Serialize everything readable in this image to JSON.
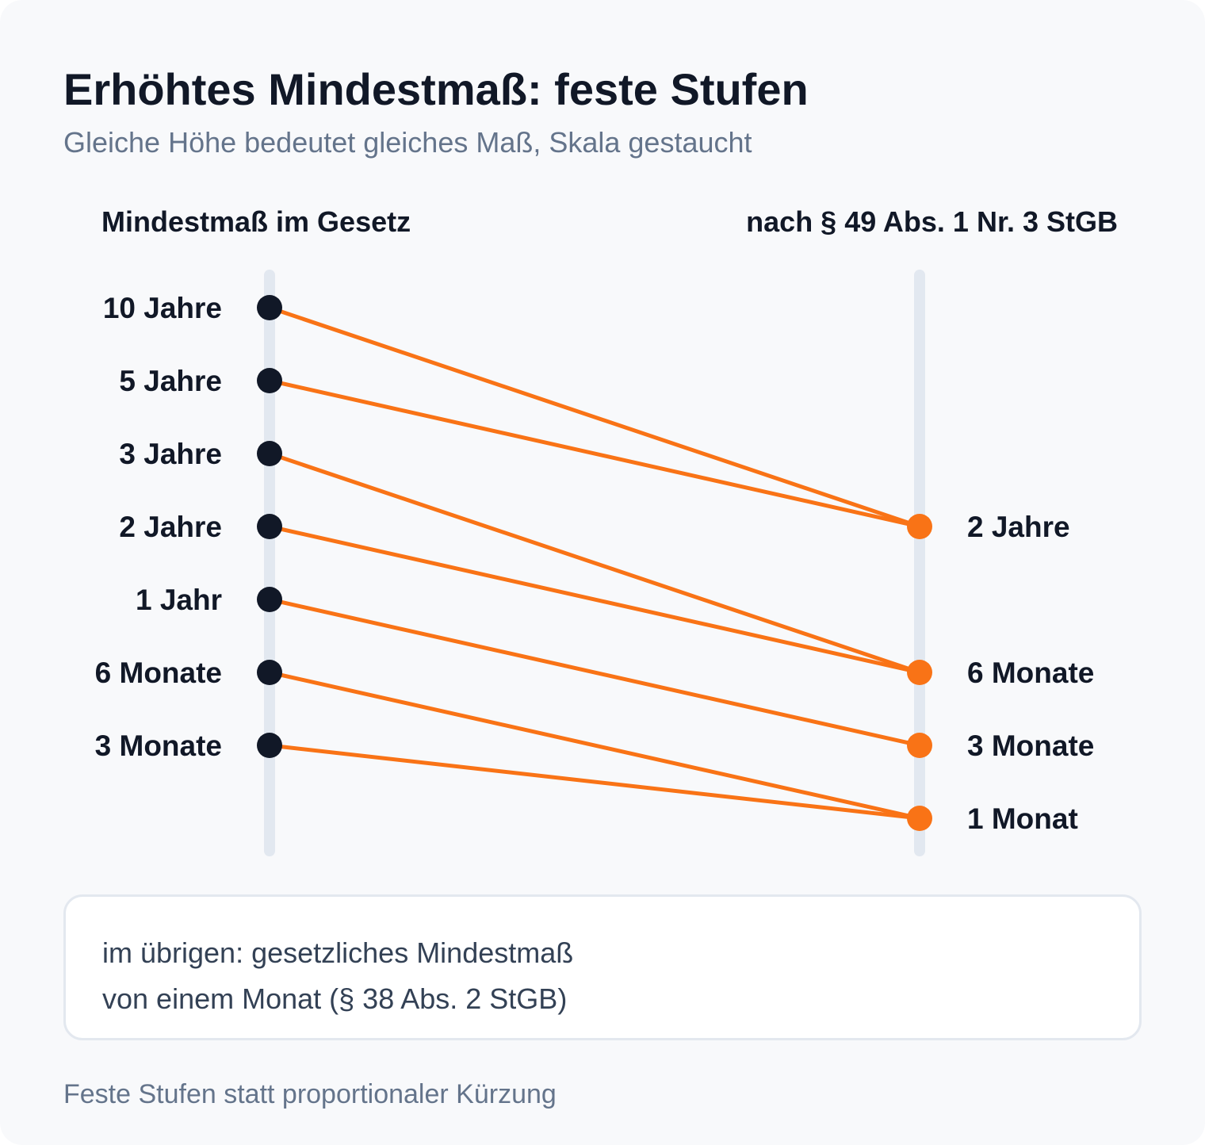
{
  "title": "Erhöhtes Mindestmaß: feste Stufen",
  "subtitle": "Gleiche Höhe bedeutet gleiches Maß, Skala gestaucht",
  "columns": {
    "left_heading": "Mindestmaß im Gesetz",
    "right_heading": "nach § 49 Abs. 1 Nr. 3 StGB"
  },
  "scale_levels": [
    "10 Jahre",
    "5 Jahre",
    "3 Jahre",
    "2 Jahre",
    "1 Jahr",
    "6 Monate",
    "3 Monate",
    "1 Monat"
  ],
  "left_items": [
    "10 Jahre",
    "5 Jahre",
    "3 Jahre",
    "2 Jahre",
    "1 Jahr",
    "6 Monate",
    "3 Monate"
  ],
  "right_items": [
    "2 Jahre",
    "6 Monate",
    "3 Monate",
    "1 Monat"
  ],
  "mappings": [
    {
      "from": "10 Jahre",
      "to": "2 Jahre"
    },
    {
      "from": "5 Jahre",
      "to": "2 Jahre"
    },
    {
      "from": "3 Jahre",
      "to": "6 Monate"
    },
    {
      "from": "2 Jahre",
      "to": "6 Monate"
    },
    {
      "from": "1 Jahr",
      "to": "3 Monate"
    },
    {
      "from": "6 Monate",
      "to": "1 Monat"
    },
    {
      "from": "3 Monate",
      "to": "1 Monat"
    }
  ],
  "note": {
    "line1": "im übrigen: gesetzliches Mindestmaß",
    "line2": "von einem Monat (§ 38 Abs. 2 StGB)"
  },
  "footer": "Feste Stufen statt proportionaler Kürzung",
  "colors": {
    "left_dot": "#111827",
    "right_dot": "#f97316",
    "connector": "#f97316",
    "axis": "#e2e8f0"
  }
}
